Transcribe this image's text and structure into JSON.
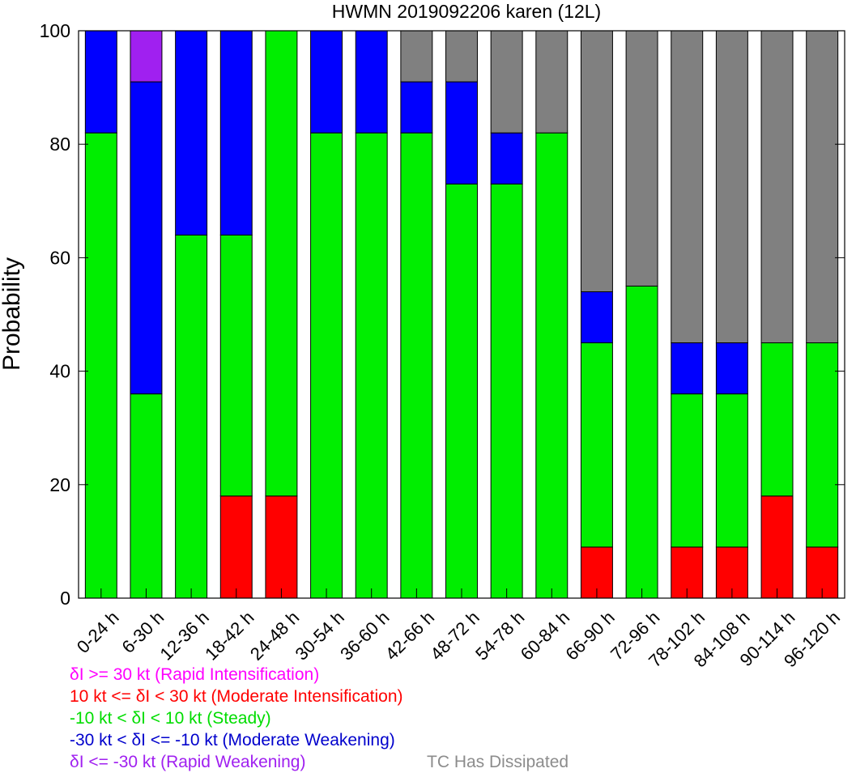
{
  "chart_data": {
    "type": "bar",
    "stacked": true,
    "title": "HWMN 2019092206 karen (12L)",
    "ylabel": "Probability",
    "xlabel": "",
    "ylim": [
      0,
      100
    ],
    "yticks": [
      0,
      20,
      40,
      60,
      80,
      100
    ],
    "categories": [
      "0-24 h",
      "6-30 h",
      "12-36 h",
      "18-42 h",
      "24-48 h",
      "30-54 h",
      "36-60 h",
      "42-66 h",
      "48-72 h",
      "54-78 h",
      "60-84 h",
      "66-90 h",
      "72-96 h",
      "78-102 h",
      "84-108 h",
      "90-114 h",
      "96-120 h"
    ],
    "series": [
      {
        "key": "ri",
        "color": "#ff00ff",
        "values": [
          0,
          0,
          0,
          0,
          0,
          0,
          0,
          0,
          0,
          0,
          0,
          0,
          0,
          0,
          0,
          0,
          0
        ]
      },
      {
        "key": "mi",
        "color": "#ff0000",
        "values": [
          0,
          0,
          0,
          18,
          18,
          0,
          0,
          0,
          0,
          0,
          0,
          9,
          0,
          9,
          9,
          18,
          9
        ]
      },
      {
        "key": "steady",
        "color": "#00ee00",
        "values": [
          82,
          36,
          64,
          46,
          82,
          82,
          82,
          82,
          73,
          73,
          82,
          36,
          55,
          27,
          27,
          27,
          36
        ]
      },
      {
        "key": "mw",
        "color": "#0000ff",
        "values": [
          18,
          55,
          36,
          36,
          0,
          18,
          18,
          9,
          18,
          9,
          0,
          9,
          0,
          9,
          9,
          0,
          0
        ]
      },
      {
        "key": "rw",
        "color": "#a020f0",
        "values": [
          0,
          9,
          0,
          0,
          0,
          0,
          0,
          0,
          0,
          0,
          0,
          0,
          0,
          0,
          0,
          0,
          0
        ]
      },
      {
        "key": "dissipated",
        "color": "#808080",
        "values": [
          0,
          0,
          0,
          0,
          0,
          0,
          0,
          9,
          9,
          18,
          18,
          46,
          45,
          55,
          55,
          55,
          55
        ]
      }
    ],
    "legend": [
      {
        "key": "ri",
        "text": "δI >= 30 kt (Rapid Intensification)",
        "color": "#ff00ff"
      },
      {
        "key": "mi",
        "text": "10 kt <= δI < 30 kt (Moderate Intensification)",
        "color": "#ff0000"
      },
      {
        "key": "steady",
        "text": "-10 kt < δI < 10 kt (Steady)",
        "color": "#00dd00"
      },
      {
        "key": "mw",
        "text": "-30 kt < δI <= -10 kt (Moderate Weakening)",
        "color": "#0000cc"
      },
      {
        "key": "rw",
        "text": "δI <= -30 kt (Rapid Weakening)",
        "color": "#a020f0"
      },
      {
        "key": "dissipated",
        "text": "TC Has Dissipated",
        "color": "#8c8c8c"
      }
    ],
    "legend_position": "bottom-left",
    "grid": false
  }
}
